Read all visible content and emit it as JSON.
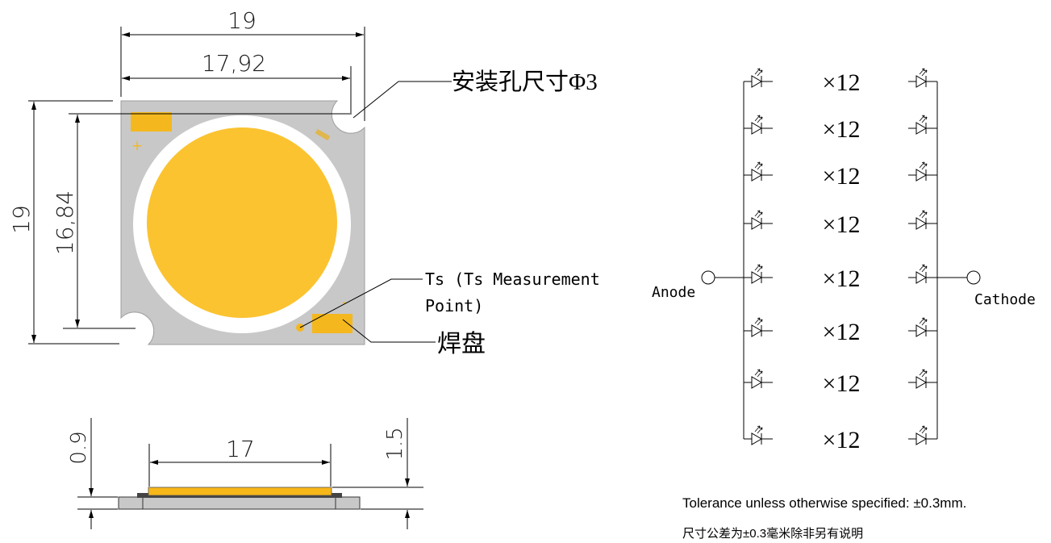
{
  "top_view": {
    "width_overall": "19",
    "width_hole_span": "17,92",
    "height_overall": "19",
    "height_hole_span": "16,84",
    "mount_hole_label": "安装孔尺寸Φ3",
    "ts_label_line1": "Ts (Ts Measurement",
    "ts_label_line2": "Point)",
    "pad_label": "焊盘",
    "plus_mark": "+",
    "minus_mark": "-",
    "colors": {
      "board": "#c8c8c8",
      "phosphor": "#fbc330",
      "ring": "#ffffff",
      "pad": "#f4b81e"
    }
  },
  "side_view": {
    "led_width": "17",
    "board_thickness": "0.9",
    "total_height": "1.5"
  },
  "circuit": {
    "anode_label": "Anode",
    "cathode_label": "Cathode",
    "rows": [
      "×12",
      "×12",
      "×12",
      "×12",
      "×12",
      "×12",
      "×12",
      "×12"
    ],
    "rows_count": 8,
    "series_per_row": 12
  },
  "notes": {
    "tolerance_en": "Tolerance unless otherwise specified: ±0.3mm.",
    "tolerance_cn": "尺寸公差为±0.3毫米除非另有说明"
  }
}
